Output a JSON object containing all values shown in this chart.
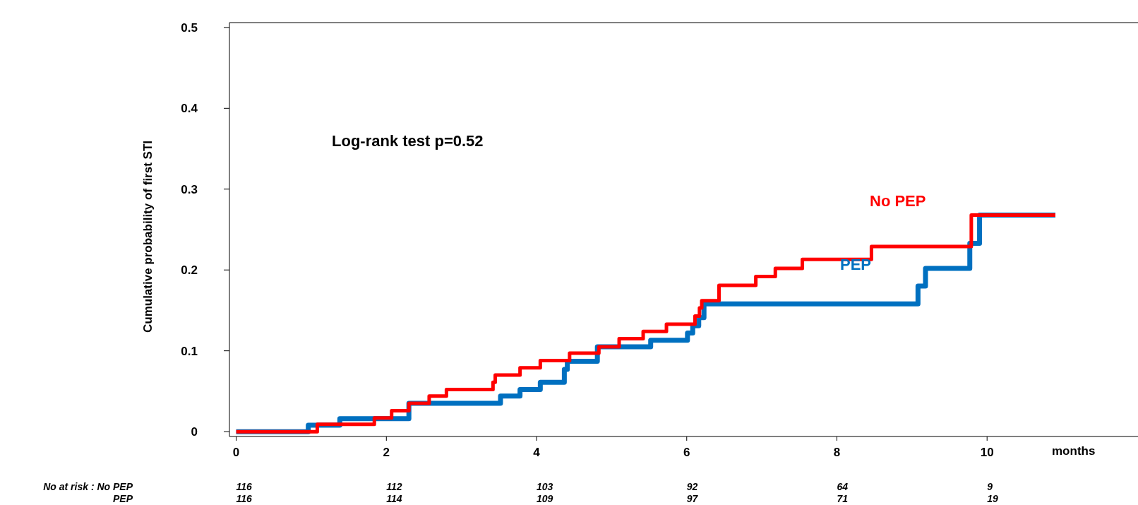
{
  "chart_data": {
    "type": "step",
    "xlabel": "months",
    "ylabel": "Cumulative probability of first STI",
    "xlim": [
      -0.09,
      12.01
    ],
    "ylim": [
      -0.006,
      0.506
    ],
    "xticks": [
      0,
      2,
      4,
      6,
      8,
      10
    ],
    "yticks": [
      0,
      0.1,
      0.2,
      0.3,
      0.4,
      0.5
    ],
    "grid": false,
    "marker": "none",
    "line_style": "solid",
    "series": [
      {
        "name": "PEP",
        "color": "#0070c0",
        "x": [
          0,
          0.96,
          1.38,
          2.3,
          3.52,
          3.78,
          4.05,
          4.37,
          4.41,
          4.81,
          5.52,
          6.01,
          6.08,
          6.16,
          6.23,
          9.08,
          9.18,
          9.77,
          9.9,
          10.91
        ],
        "values": [
          0,
          0.008,
          0.016,
          0.035,
          0.044,
          0.052,
          0.061,
          0.077,
          0.087,
          0.105,
          0.113,
          0.122,
          0.131,
          0.141,
          0.158,
          0.18,
          0.202,
          0.233,
          0.268,
          0.268
        ]
      },
      {
        "name": "No PEP",
        "color": "#ff0000",
        "x": [
          0,
          1.08,
          1.84,
          2.07,
          2.3,
          2.57,
          2.8,
          3.42,
          3.45,
          3.78,
          4.05,
          4.44,
          4.83,
          5.1,
          5.42,
          5.73,
          6.11,
          6.17,
          6.2,
          6.43,
          6.92,
          7.18,
          7.54,
          8.46,
          9.79,
          10.91
        ],
        "values": [
          0,
          0.009,
          0.017,
          0.026,
          0.035,
          0.044,
          0.052,
          0.061,
          0.07,
          0.079,
          0.088,
          0.097,
          0.105,
          0.115,
          0.124,
          0.133,
          0.143,
          0.153,
          0.162,
          0.181,
          0.192,
          0.202,
          0.213,
          0.229,
          0.268,
          0.268
        ]
      }
    ],
    "annotations": [
      "Log-rank test p=0.52",
      "No at risk : No PEP",
      "116",
      "112",
      "103",
      "92",
      "64",
      "9",
      "PEP",
      "116",
      "114",
      "109",
      "97",
      "71",
      "19"
    ]
  }
}
